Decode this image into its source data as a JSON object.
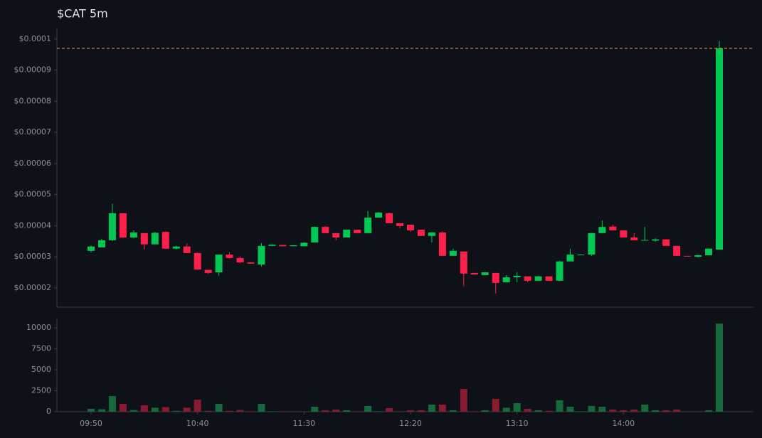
{
  "chart_data": [
    {
      "type": "candlestick",
      "title": "$CAT 5m",
      "categories": [
        "09:50",
        null,
        null,
        null,
        null,
        null,
        null,
        null,
        null,
        null,
        "10:40",
        null,
        null,
        null,
        null,
        null,
        null,
        null,
        null,
        null,
        "11:30",
        null,
        null,
        null,
        null,
        null,
        null,
        null,
        null,
        null,
        "12:20",
        null,
        null,
        null,
        null,
        null,
        null,
        null,
        null,
        null,
        "13:10",
        null,
        null,
        null,
        null,
        null,
        null,
        null,
        null,
        null,
        "14:00",
        null,
        null,
        null,
        null,
        null,
        null,
        null,
        null,
        null
      ],
      "open": [
        3.19e-05,
        3.3e-05,
        3.53e-05,
        4.4e-05,
        3.62e-05,
        3.76e-05,
        3.4e-05,
        3.8e-05,
        3.26e-05,
        3.33e-05,
        3.12e-05,
        2.58e-05,
        2.5e-05,
        3.07e-05,
        2.96e-05,
        2.82e-05,
        2.75e-05,
        3.35e-05,
        3.38e-05,
        3.34e-05,
        3.34e-05,
        3.46e-05,
        3.96e-05,
        3.76e-05,
        3.62e-05,
        3.87e-05,
        3.76e-05,
        4.26e-05,
        4.4e-05,
        4.08e-05,
        4.03e-05,
        3.87e-05,
        3.67e-05,
        3.78e-05,
        3.03e-05,
        3.17e-05,
        2.48e-05,
        2.41e-05,
        2.48e-05,
        2.18e-05,
        2.34e-05,
        2.37e-05,
        2.23e-05,
        2.37e-05,
        2.23e-05,
        2.85e-05,
        3.05e-05,
        3.07e-05,
        3.76e-05,
        3.97e-05,
        3.85e-05,
        3.62e-05,
        3.53e-05,
        3.52e-05,
        3.56e-05,
        3.35e-05,
        3.03e-05,
        3e-05,
        3.05e-05,
        3.23e-05
      ],
      "high": [
        3.37e-05,
        3.58e-05,
        4.7e-05,
        4.4e-05,
        3.85e-05,
        3.76e-05,
        3.8e-05,
        3.82e-05,
        3.36e-05,
        3.42e-05,
        3.14e-05,
        2.58e-05,
        3.08e-05,
        3.14e-05,
        3e-05,
        2.82e-05,
        3.44e-05,
        3.4e-05,
        3.38e-05,
        3.37e-05,
        3.47e-05,
        3.97e-05,
        3.99e-05,
        3.76e-05,
        3.88e-05,
        3.87e-05,
        4.47e-05,
        4.44e-05,
        4.42e-05,
        4.08e-05,
        4.03e-05,
        3.87e-05,
        3.8e-05,
        3.82e-05,
        3.26e-05,
        3.17e-05,
        2.48e-05,
        2.51e-05,
        2.48e-05,
        2.41e-05,
        2.5e-05,
        2.37e-05,
        2.39e-05,
        2.37e-05,
        2.87e-05,
        3.26e-05,
        3.08e-05,
        3.76e-05,
        4.17e-05,
        4.03e-05,
        3.85e-05,
        3.76e-05,
        3.96e-05,
        3.6e-05,
        3.56e-05,
        3.35e-05,
        3.03e-05,
        3.06e-05,
        3.27e-05,
        9.94e-05
      ],
      "low": [
        3.14e-05,
        3.3e-05,
        3.5e-05,
        3.6e-05,
        3.6e-05,
        3.23e-05,
        3.4e-05,
        3.26e-05,
        3.24e-05,
        3.12e-05,
        2.58e-05,
        2.45e-05,
        2.39e-05,
        2.94e-05,
        2.8e-05,
        2.77e-05,
        2.69e-05,
        3.34e-05,
        3.33e-05,
        3.33e-05,
        3.33e-05,
        3.46e-05,
        3.76e-05,
        3.53e-05,
        3.62e-05,
        3.76e-05,
        3.76e-05,
        4.26e-05,
        4.08e-05,
        3.92e-05,
        3.8e-05,
        3.67e-05,
        3.46e-05,
        3.03e-05,
        3.03e-05,
        2.05e-05,
        2.43e-05,
        2.41e-05,
        1.82e-05,
        2.18e-05,
        2.18e-05,
        2.18e-05,
        2.23e-05,
        2.23e-05,
        2.23e-05,
        2.85e-05,
        3.05e-05,
        3.03e-05,
        3.76e-05,
        3.85e-05,
        3.62e-05,
        3.53e-05,
        3.53e-05,
        3.48e-05,
        3.35e-05,
        3.03e-05,
        3.01e-05,
        2.98e-05,
        3.05e-05,
        3.23e-05
      ],
      "close": [
        3.33e-05,
        3.53e-05,
        4.4e-05,
        3.62e-05,
        3.78e-05,
        3.4e-05,
        3.77e-05,
        3.26e-05,
        3.33e-05,
        3.12e-05,
        2.59e-05,
        2.48e-05,
        3.07e-05,
        2.96e-05,
        2.82e-05,
        2.78e-05,
        3.35e-05,
        3.39e-05,
        3.34e-05,
        3.37e-05,
        3.45e-05,
        3.96e-05,
        3.76e-05,
        3.62e-05,
        3.87e-05,
        3.76e-05,
        4.26e-05,
        4.42e-05,
        4.08e-05,
        3.99e-05,
        3.85e-05,
        3.67e-05,
        3.78e-05,
        3.03e-05,
        3.19e-05,
        2.46e-05,
        2.43e-05,
        2.5e-05,
        2.16e-05,
        2.34e-05,
        2.39e-05,
        2.23e-05,
        2.37e-05,
        2.23e-05,
        2.85e-05,
        3.07e-05,
        3.07e-05,
        3.76e-05,
        3.96e-05,
        3.85e-05,
        3.62e-05,
        3.53e-05,
        3.54e-05,
        3.56e-05,
        3.35e-05,
        3.03e-05,
        3.01e-05,
        3.05e-05,
        3.26e-05,
        9.7e-05
      ],
      "ylim": [
        1.38e-05,
        0.0001034
      ],
      "yticks": [
        {
          "value": 2e-05,
          "label": "$0.00002"
        },
        {
          "value": 3e-05,
          "label": "$0.00003"
        },
        {
          "value": 4e-05,
          "label": "$0.00004"
        },
        {
          "value": 5e-05,
          "label": "$0.00005"
        },
        {
          "value": 6e-05,
          "label": "$0.00006"
        },
        {
          "value": 7e-05,
          "label": "$0.00007"
        },
        {
          "value": 8e-05,
          "label": "$0.00008"
        },
        {
          "value": 9e-05,
          "label": "$0.00009"
        },
        {
          "value": 0.0001,
          "label": "$0.0001"
        }
      ],
      "up_color": "#00c853",
      "down_color": "#ff1f4b",
      "last_price_line": true,
      "last_price_color": "#d4a72c"
    },
    {
      "type": "volume",
      "values": [
        340,
        300,
        1860,
        930,
        200,
        760,
        470,
        550,
        100,
        470,
        1440,
        100,
        930,
        100,
        200,
        50,
        930,
        50,
        50,
        30,
        30,
        590,
        170,
        250,
        170,
        50,
        680,
        50,
        420,
        50,
        170,
        170,
        850,
        850,
        170,
        2710,
        30,
        170,
        1530,
        470,
        1020,
        340,
        170,
        100,
        1360,
        590,
        50,
        680,
        590,
        250,
        170,
        250,
        850,
        170,
        170,
        250,
        30,
        30,
        170,
        10500
      ],
      "ylim": [
        0,
        11100
      ],
      "yticks": [
        0,
        2500,
        5000,
        7500,
        10000
      ],
      "up_color": "#15693a",
      "down_color": "#8a1a30"
    }
  ]
}
